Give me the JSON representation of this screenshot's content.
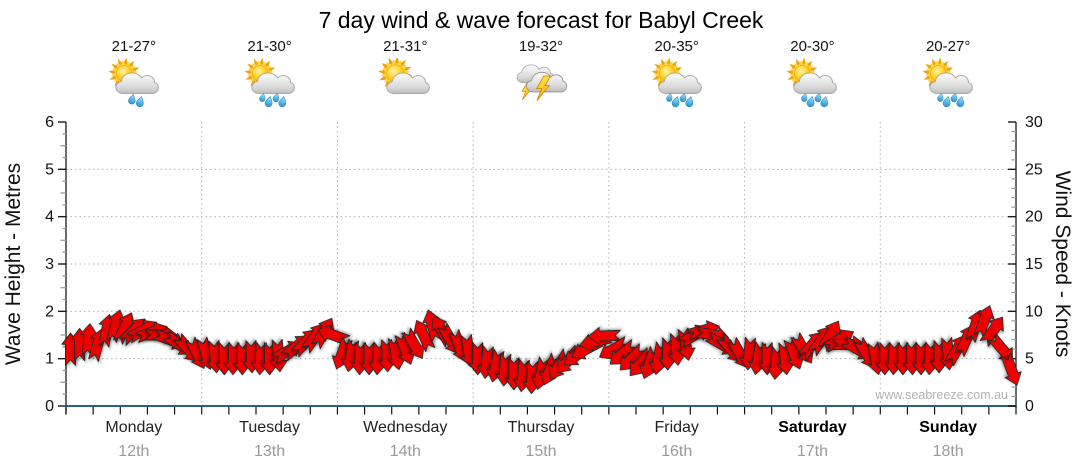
{
  "title": "7 day wind & wave forecast for Babyl Creek",
  "watermark": "www.seabreeze.com.au",
  "colors": {
    "arrow": "#ee0000",
    "arrow_outline": "#262626",
    "axis": "#1a1a1a",
    "x_baseline": "#2a607f",
    "grid": "#b0b0b0",
    "minor_tick": "#999999",
    "day_label": "#222222",
    "weekend_label": "#000000",
    "date_label": "#9a9a9a",
    "watermark": "#b3b3b3",
    "title_text": "#000000"
  },
  "left_axis": {
    "label": "Wave Height - Metres",
    "min": 0,
    "max": 6,
    "ticks": [
      0,
      1,
      2,
      3,
      4,
      5,
      6
    ]
  },
  "right_axis": {
    "label": "Wind Speed - Knots",
    "min": 0,
    "max": 30,
    "ticks": [
      0,
      5,
      10,
      15,
      20,
      25,
      30
    ]
  },
  "days": [
    {
      "name": "Monday",
      "date": "12th",
      "temp": "21-27°",
      "icon": "sun-cloud-rain",
      "drops": 2,
      "bold": false
    },
    {
      "name": "Tuesday",
      "date": "13th",
      "temp": "21-30°",
      "icon": "sun-cloud-rain",
      "drops": 4,
      "bold": false
    },
    {
      "name": "Wednesday",
      "date": "14th",
      "temp": "21-31°",
      "icon": "sun-cloud",
      "drops": 0,
      "bold": false
    },
    {
      "name": "Thursday",
      "date": "15th",
      "temp": "19-32°",
      "icon": "storm",
      "drops": 0,
      "bold": false
    },
    {
      "name": "Friday",
      "date": "16th",
      "temp": "20-35°",
      "icon": "sun-cloud-rain",
      "drops": 4,
      "bold": false
    },
    {
      "name": "Saturday",
      "date": "17th",
      "temp": "20-30°",
      "icon": "sun-cloud-rain",
      "drops": 4,
      "bold": true
    },
    {
      "name": "Sunday",
      "date": "18th",
      "temp": "20-27°",
      "icon": "sun-cloud-rain",
      "drops": 4,
      "bold": true
    }
  ],
  "chart_data": {
    "type": "wind-arrows",
    "title": "7 day wind & wave forecast for Babyl Creek",
    "x_categories": [
      "Monday 12th",
      "Tuesday 13th",
      "Wednesday 14th",
      "Thursday 15th",
      "Friday 16th",
      "Saturday 17th",
      "Sunday 18th"
    ],
    "samples_per_day": 15,
    "left_axis": {
      "label": "Wave Height - Metres",
      "range": [
        0,
        6
      ],
      "gridlines": [
        1,
        2,
        3,
        4,
        5
      ]
    },
    "right_axis": {
      "label": "Wind Speed - Knots",
      "range": [
        0,
        30
      ],
      "gridlines": [
        5,
        10,
        15,
        20,
        25
      ]
    },
    "arrows_plotted_against": "right_axis",
    "wind_speed_knots_by_day": [
      [
        6,
        6.5,
        7,
        6.5,
        8,
        8.5,
        8.3,
        8,
        8,
        7.8,
        7.5,
        7,
        6.5,
        6,
        5.5
      ],
      [
        5.5,
        5.2,
        5,
        5,
        5,
        5.2,
        5,
        5,
        5.3,
        5.8,
        6.3,
        6.8,
        7.3,
        7.8,
        7.5
      ],
      [
        5.5,
        5.3,
        5,
        5,
        5,
        5.3,
        5.5,
        6,
        6.5,
        7.5,
        8.5,
        8,
        7,
        6.3,
        5.8
      ],
      [
        5,
        4.6,
        4.2,
        3.8,
        3.4,
        3.2,
        3,
        3.4,
        3.8,
        4.3,
        4.8,
        5.4,
        6,
        6.8,
        7.4
      ],
      [
        6,
        5.5,
        5,
        4.5,
        4.5,
        5,
        5.5,
        6,
        6.5,
        7.5,
        8,
        7.5,
        6.5,
        6,
        5.5
      ],
      [
        5.5,
        5,
        5,
        4.5,
        5,
        5.5,
        6,
        6.5,
        7,
        7.5,
        7,
        6.5,
        6,
        5.5,
        5
      ],
      [
        5,
        5,
        5,
        5,
        5,
        5,
        5.2,
        5.5,
        6,
        7,
        8.5,
        9,
        8,
        6,
        3.8
      ]
    ],
    "wind_direction_deg_by_day": [
      [
        0,
        0,
        5,
        15,
        10,
        15,
        25,
        45,
        60,
        70,
        90,
        110,
        125,
        140,
        155
      ],
      [
        165,
        175,
        180,
        182,
        180,
        178,
        183,
        180,
        175,
        60,
        50,
        42,
        35,
        30,
        290
      ],
      [
        200,
        190,
        182,
        180,
        184,
        178,
        170,
        160,
        150,
        335,
        345,
        330,
        150,
        160,
        172
      ],
      [
        180,
        186,
        192,
        184,
        180,
        186,
        182,
        192,
        202,
        212,
        222,
        232,
        242,
        256,
        268
      ],
      [
        240,
        230,
        225,
        220,
        200,
        190,
        180,
        175,
        170,
        60,
        75,
        100,
        120,
        140,
        150
      ],
      [
        185,
        190,
        180,
        185,
        175,
        160,
        150,
        40,
        35,
        30,
        60,
        90,
        120,
        150,
        170
      ],
      [
        180,
        182,
        180,
        178,
        180,
        183,
        180,
        175,
        30,
        25,
        18,
        20,
        35,
        140,
        160
      ]
    ]
  }
}
